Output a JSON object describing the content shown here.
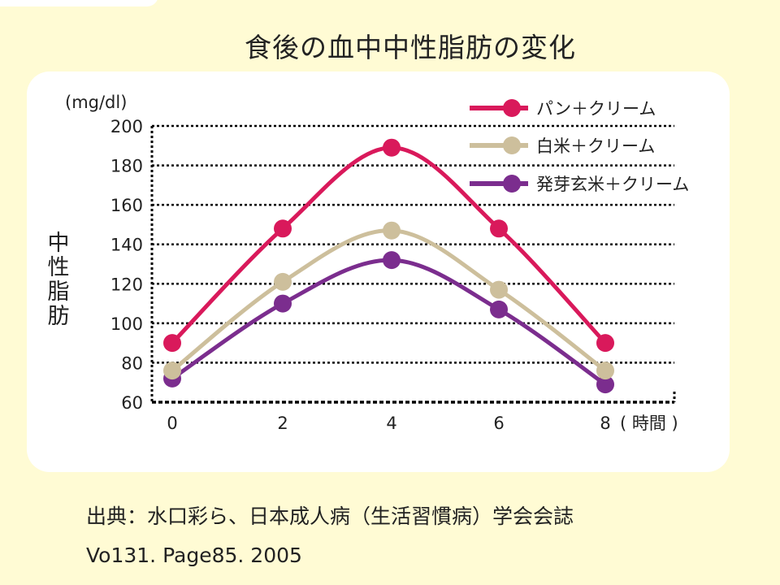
{
  "chart_data": {
    "type": "line",
    "title": "食後の血中中性脂肪の変化",
    "unit_label": "(mg/dl)",
    "ylabel": "中性脂肪",
    "x_unit": "( 時間 )",
    "x": [
      0,
      2,
      4,
      6,
      8
    ],
    "x_tick_labels": [
      "0",
      "2",
      "4",
      "6",
      "8"
    ],
    "ylim": [
      60,
      200
    ],
    "y_ticks": [
      60,
      80,
      100,
      120,
      140,
      160,
      180,
      200
    ],
    "grid": true,
    "legend_position": "top-right",
    "series": [
      {
        "name": "パン＋クリーム",
        "color": "#D9195B",
        "values": [
          90,
          148,
          189,
          148,
          90
        ]
      },
      {
        "name": "白米＋クリーム",
        "color": "#CDBF9C",
        "values": [
          76,
          121,
          147,
          117,
          76
        ]
      },
      {
        "name": "発芽玄米＋クリーム",
        "color": "#7B2D8E",
        "values": [
          72,
          110,
          132,
          107,
          69
        ]
      }
    ]
  },
  "source": {
    "line1": "出典：水口彩ら、日本成人病（生活習慣病）学会会誌",
    "line2": "Vo131.  Page85.  2005"
  }
}
